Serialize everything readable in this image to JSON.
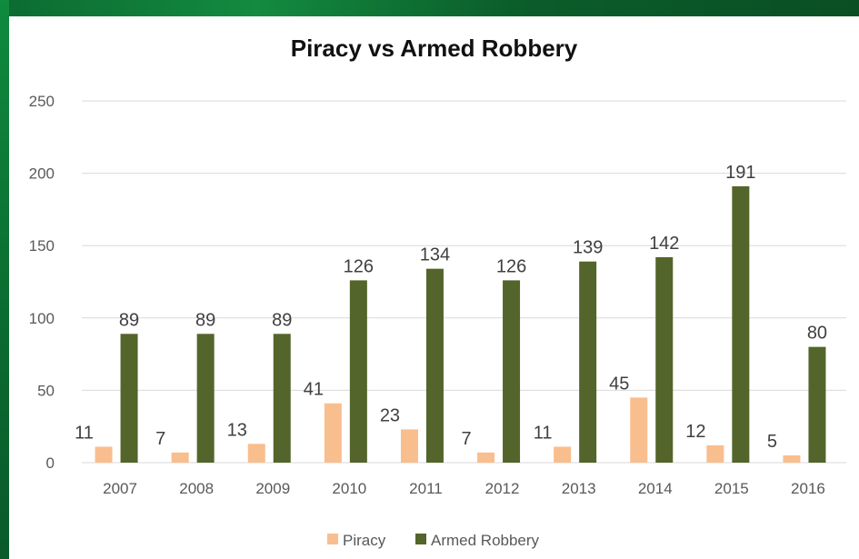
{
  "colors": {
    "piracy": "#f9be8e",
    "armed_robbery": "#53652a",
    "gridline": "#d9d9d9",
    "axis_text": "#595959",
    "label_text": "#404040"
  },
  "chart_data": {
    "type": "bar",
    "title": "Piracy vs Armed Robbery",
    "categories": [
      "2007",
      "2008",
      "2009",
      "2010",
      "2011",
      "2012",
      "2013",
      "2014",
      "2015",
      "2016"
    ],
    "series": [
      {
        "name": "Piracy",
        "values": [
          11,
          7,
          13,
          41,
          23,
          7,
          11,
          45,
          12,
          5
        ]
      },
      {
        "name": "Armed Robbery",
        "values": [
          89,
          89,
          89,
          126,
          134,
          126,
          139,
          142,
          191,
          80
        ]
      }
    ],
    "ylim": [
      0,
      250
    ],
    "yticks": [
      0,
      50,
      100,
      150,
      200,
      250
    ],
    "grid": true,
    "legend": "bottom"
  }
}
